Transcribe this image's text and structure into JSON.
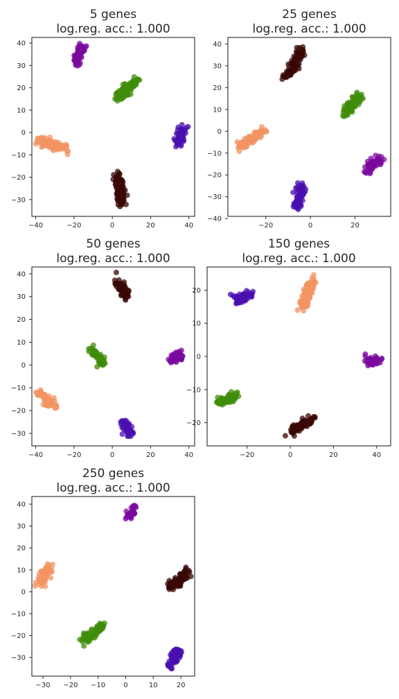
{
  "chart_data": [
    {
      "type": "scatter",
      "title": "5 genes",
      "subtitle": "log.reg. acc.: 1.000",
      "xlim": [
        -42,
        43
      ],
      "ylim": [
        -37.5,
        42.5
      ],
      "xticks": [
        -40,
        -20,
        0,
        20,
        40
      ],
      "yticks": [
        -30,
        -20,
        -10,
        0,
        10,
        20,
        30,
        40
      ],
      "clusters": [
        {
          "color": "#7b0a9f",
          "points": [
            [
              -19,
              30
            ],
            [
              -17,
              36
            ],
            [
              -16,
              39
            ]
          ]
        },
        {
          "color": "#3f8c0a",
          "points": [
            [
              2,
              15
            ],
            [
              7,
              19
            ],
            [
              13,
              23
            ]
          ]
        },
        {
          "color": "#4a0fb0",
          "points": [
            [
              35,
              -5
            ],
            [
              36,
              -1
            ],
            [
              37,
              2
            ]
          ]
        },
        {
          "color": "#f29463",
          "points": [
            [
              -38,
              -4
            ],
            [
              -30,
              -6
            ],
            [
              -24,
              -7
            ]
          ]
        },
        {
          "color": "#3a0805",
          "points": [
            [
              3,
              -19
            ],
            [
              4,
              -26
            ],
            [
              5,
              -32
            ]
          ]
        }
      ]
    },
    {
      "type": "scatter",
      "title": "25 genes",
      "subtitle": "log.reg. acc.: 1.000",
      "xlim": [
        -37,
        36
      ],
      "ylim": [
        -39,
        43
      ],
      "xticks": [
        -20,
        0,
        20
      ],
      "yticks": [
        -40,
        -30,
        -20,
        -10,
        0,
        10,
        20,
        30,
        40
      ],
      "clusters": [
        {
          "color": "#3a0805",
          "points": [
            [
              -11,
              25
            ],
            [
              -7,
              31
            ],
            [
              -4,
              37
            ]
          ]
        },
        {
          "color": "#3f8c0a",
          "points": [
            [
              15,
              8
            ],
            [
              19,
              12
            ],
            [
              22,
              16
            ]
          ]
        },
        {
          "color": "#f29463",
          "points": [
            [
              -32,
              -7
            ],
            [
              -26,
              -3
            ],
            [
              -21,
              0
            ]
          ]
        },
        {
          "color": "#7b0a9f",
          "points": [
            [
              25,
              -18
            ],
            [
              28,
              -15
            ],
            [
              32,
              -12
            ]
          ]
        },
        {
          "color": "#4a0fb0",
          "points": [
            [
              -6,
              -35
            ],
            [
              -5,
              -30
            ],
            [
              -4,
              -25
            ]
          ]
        }
      ]
    },
    {
      "type": "scatter",
      "title": "50 genes",
      "subtitle": "log.reg. acc.: 1.000",
      "xlim": [
        -42,
        43
      ],
      "ylim": [
        -35.5,
        43
      ],
      "xticks": [
        -40,
        -20,
        0,
        20,
        40
      ],
      "yticks": [
        -30,
        -20,
        -10,
        0,
        10,
        20,
        30,
        40
      ],
      "clusters": [
        {
          "color": "#3a0805",
          "points": [
            [
              3,
              37
            ],
            [
              5,
              33
            ],
            [
              8,
              30
            ]
          ]
        },
        {
          "color": "#3f8c0a",
          "points": [
            [
              -11,
              7
            ],
            [
              -8,
              4
            ],
            [
              -5,
              1
            ]
          ]
        },
        {
          "color": "#7b0a9f",
          "points": [
            [
              31,
              1
            ],
            [
              33,
              3
            ],
            [
              36,
              6
            ]
          ]
        },
        {
          "color": "#f29463",
          "points": [
            [
              -38,
              -12
            ],
            [
              -34,
              -15
            ],
            [
              -30,
              -18
            ]
          ]
        },
        {
          "color": "#4a0fb0",
          "points": [
            [
              6,
              -25
            ],
            [
              8,
              -28
            ],
            [
              10,
              -31
            ]
          ]
        }
      ]
    },
    {
      "type": "scatter",
      "title": "150 genes",
      "subtitle": "log.reg. acc.: 1.000",
      "xlim": [
        -38.5,
        46.5
      ],
      "ylim": [
        -27,
        27
      ],
      "xticks": [
        -20,
        0,
        20,
        40
      ],
      "yticks": [
        -20,
        -10,
        0,
        10,
        20
      ],
      "clusters": [
        {
          "color": "#4a0fb0",
          "points": [
            [
              -26,
              18
            ],
            [
              -23,
              17
            ],
            [
              -19,
              19
            ]
          ]
        },
        {
          "color": "#f29463",
          "points": [
            [
              6,
              15
            ],
            [
              8,
              19
            ],
            [
              11,
              23
            ]
          ]
        },
        {
          "color": "#7b0a9f",
          "points": [
            [
              35,
              -1
            ],
            [
              38,
              -2
            ],
            [
              41,
              -1
            ]
          ]
        },
        {
          "color": "#3f8c0a",
          "points": [
            [
              -33,
              -14
            ],
            [
              -29,
              -13
            ],
            [
              -25,
              -12
            ]
          ]
        },
        {
          "color": "#3a0805",
          "points": [
            [
              0,
              -23
            ],
            [
              5,
              -21
            ],
            [
              10,
              -19
            ]
          ]
        }
      ]
    },
    {
      "type": "scatter",
      "title": "250 genes",
      "subtitle": "log.reg. acc.: 1.000",
      "xlim": [
        -34,
        25
      ],
      "ylim": [
        -38.5,
        43.5
      ],
      "xticks": [
        -30,
        -20,
        -10,
        0,
        10,
        20
      ],
      "yticks": [
        -30,
        -20,
        -10,
        0,
        10,
        20,
        30,
        40
      ],
      "clusters": [
        {
          "color": "#7b0a9f",
          "points": [
            [
              1,
              34
            ],
            [
              2,
              36
            ],
            [
              3,
              38
            ]
          ]
        },
        {
          "color": "#f29463",
          "points": [
            [
              -31,
              4
            ],
            [
              -29,
              8
            ],
            [
              -27,
              12
            ]
          ]
        },
        {
          "color": "#3a0805",
          "points": [
            [
              16,
              2
            ],
            [
              19,
              5
            ],
            [
              22,
              9
            ]
          ]
        },
        {
          "color": "#3f8c0a",
          "points": [
            [
              -15,
              -22
            ],
            [
              -12,
              -19
            ],
            [
              -9,
              -16
            ]
          ]
        },
        {
          "color": "#4a0fb0",
          "points": [
            [
              16,
              -34
            ],
            [
              18,
              -30
            ],
            [
              19,
              -26
            ]
          ]
        }
      ]
    }
  ]
}
